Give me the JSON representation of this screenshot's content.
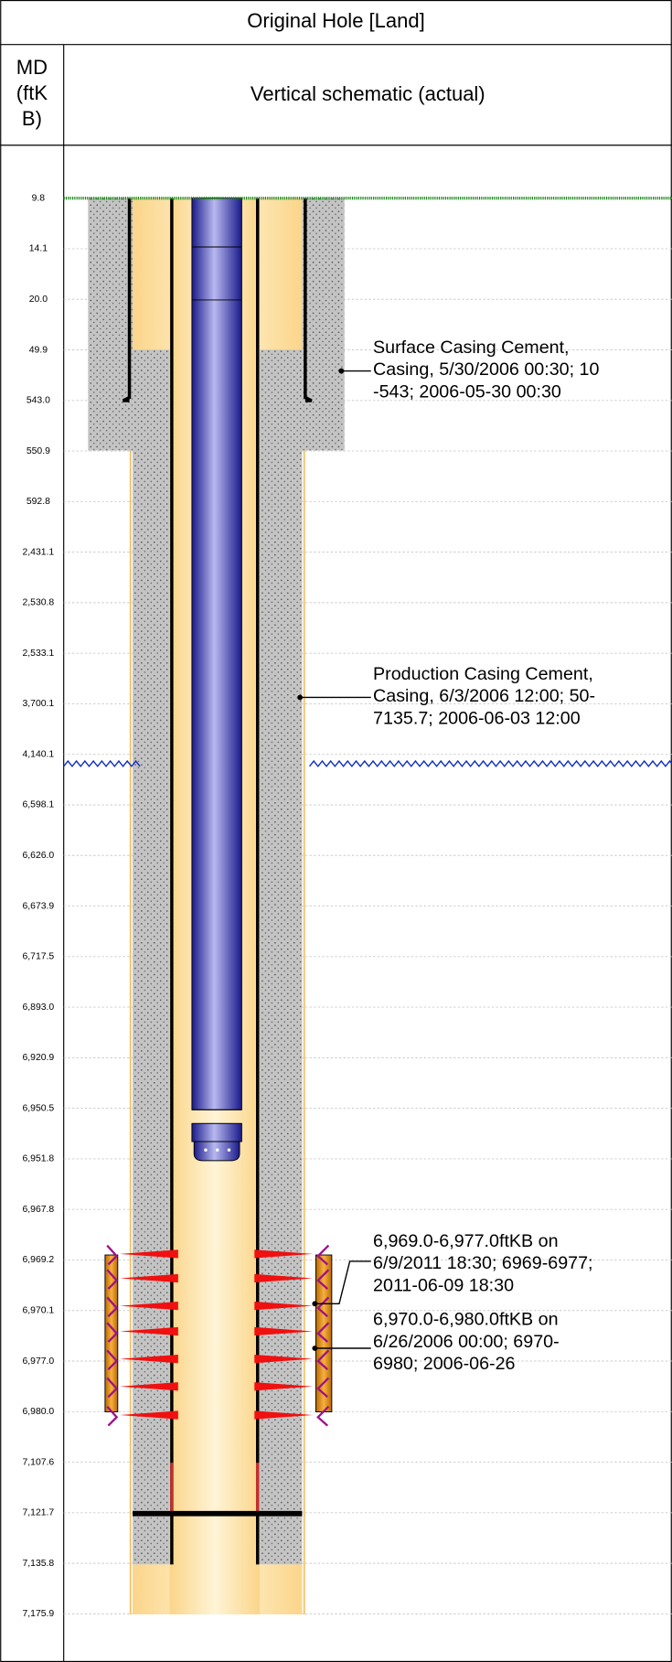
{
  "title": "Original Hole [Land]",
  "md_header": [
    "MD",
    "(ftK",
    "B)"
  ],
  "schematic_header": "Vertical schematic (actual)",
  "depths": [
    "9.8",
    "14.1",
    "20.0",
    "49.9",
    "543.0",
    "550.9",
    "592.8",
    "2,431.1",
    "2,530.8",
    "2,533.1",
    "3,700.1",
    "4,140.1",
    "6,598.1",
    "6,626.0",
    "6,673.9",
    "6,717.5",
    "6,893.0",
    "6,920.9",
    "6,950.5",
    "6,951.8",
    "6,967.8",
    "6,969.2",
    "6,970.1",
    "6,977.0",
    "6,980.0",
    "7,107.6",
    "7,121.7",
    "7,135.8",
    "7,175.9"
  ],
  "annotations": [
    {
      "lines": [
        "Surface Casing Cement,",
        "Casing, 5/30/2006 00:30; 10",
        "-543; 2006-05-30 00:30"
      ]
    },
    {
      "lines": [
        "Production Casing Cement,",
        "Casing, 6/3/2006 12:00; 50-",
        "7135.7; 2006-06-03 12:00"
      ]
    },
    {
      "lines": [
        "6,969.0-6,977.0ftKB on",
        "6/9/2011 18:30; 6969-6977;",
        "2011-06-09 18:30"
      ]
    },
    {
      "lines": [
        "6,970.0-6,980.0ftKB on",
        "6/26/2006 00:00; 6970-",
        "6980; 2006-06-26"
      ]
    }
  ]
}
